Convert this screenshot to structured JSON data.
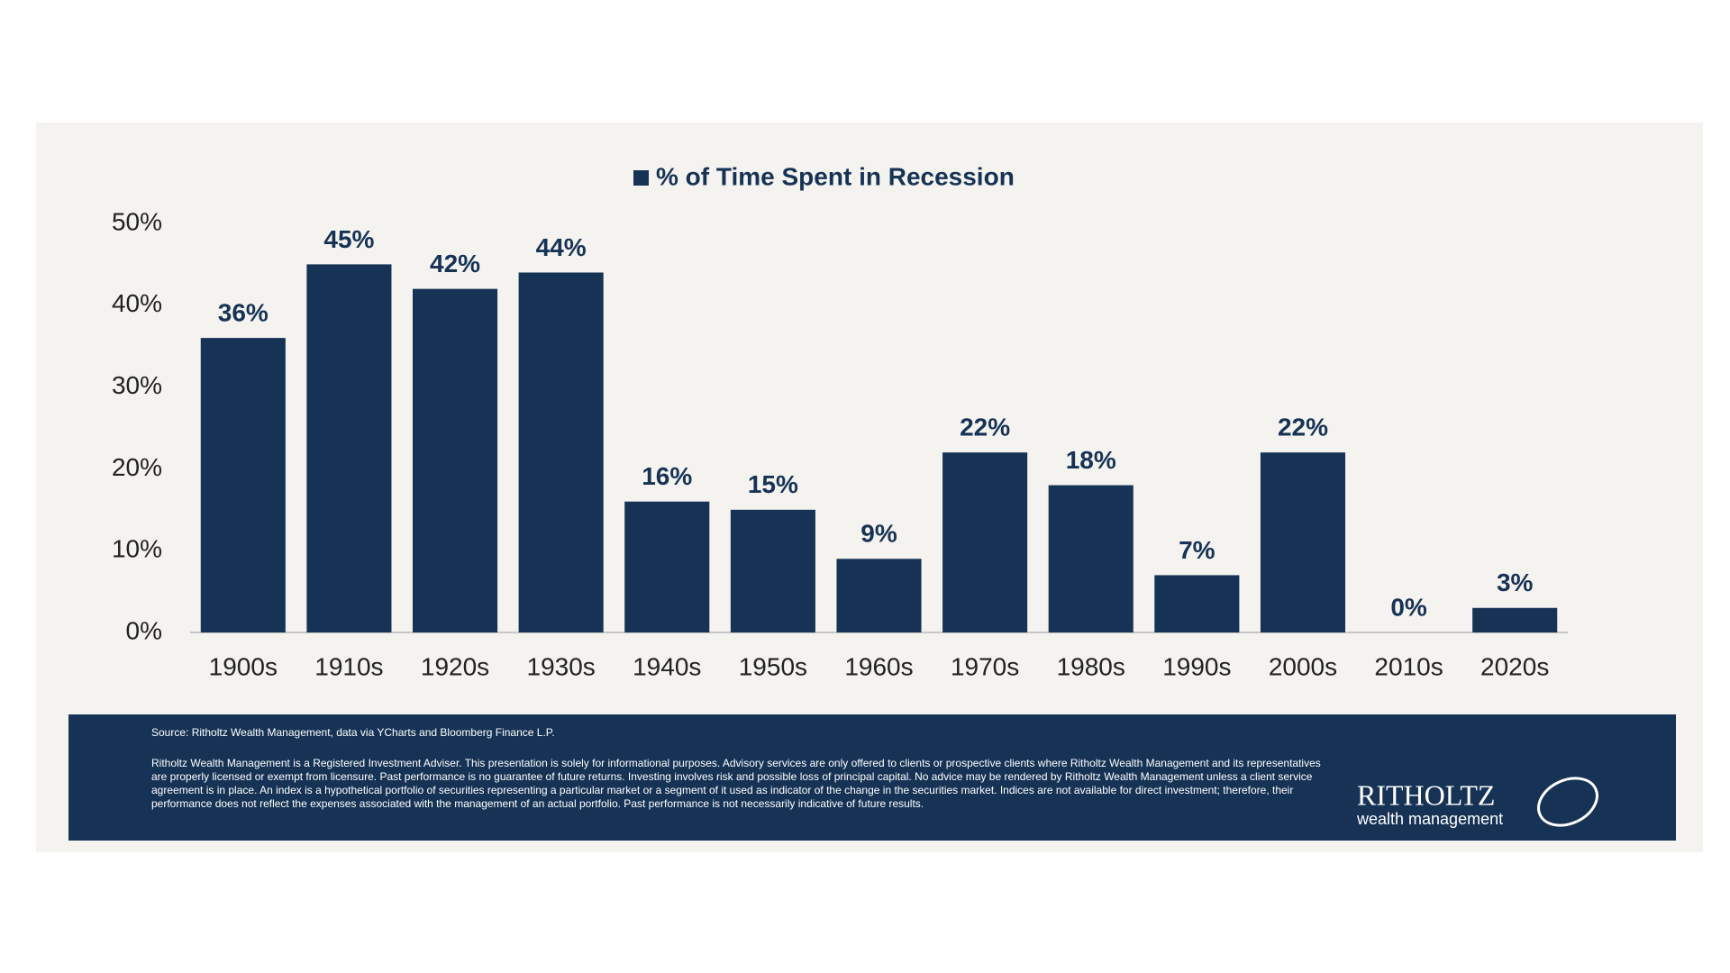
{
  "chart_data": {
    "type": "bar",
    "legend_label": "% of Time Spent in Recession",
    "categories": [
      "1900s",
      "1910s",
      "1920s",
      "1930s",
      "1940s",
      "1950s",
      "1960s",
      "1970s",
      "1980s",
      "1990s",
      "2000s",
      "2010s",
      "2020s"
    ],
    "series": [
      {
        "name": "% of Time Spent in Recession",
        "color": "#163356",
        "values": [
          36,
          45,
          42,
          44,
          16,
          15,
          9,
          22,
          18,
          7,
          22,
          0,
          3
        ],
        "value_labels": [
          "36%",
          "45%",
          "42%",
          "44%",
          "16%",
          "15%",
          "9%",
          "22%",
          "18%",
          "7%",
          "22%",
          "0%",
          "3%"
        ]
      }
    ],
    "ylim": [
      0,
      50
    ],
    "yticks": [
      {
        "value": 0,
        "label": "0%"
      },
      {
        "value": 10,
        "label": "10%"
      },
      {
        "value": 20,
        "label": "20%"
      },
      {
        "value": 30,
        "label": "30%"
      },
      {
        "value": 40,
        "label": "40%"
      },
      {
        "value": 50,
        "label": "50%"
      }
    ],
    "grid": false,
    "source": "Source: Ritholtz Wealth Management, data via YCharts and Bloomberg Finance L.P.",
    "disclaimer": "Ritholtz Wealth Management is a Registered Investment Adviser. This presentation is solely for informational purposes. Advisory services are only offered to clients or prospective clients where Ritholtz Wealth Management and its representatives are properly licensed or exempt from licensure. Past performance is no guarantee of future returns. Investing involves risk and possible loss of principal capital. No advice may be rendered by Ritholtz Wealth Management unless a client service agreement is in place. An index is a hypothetical portfolio of securities representing a particular market or a segment of it used as indicator of the change in the securities market. Indices are not available for direct investment; therefore, their performance does not reflect the expenses associated with the management of an actual portfolio. Past performance is not necessarily indicative of future results.",
    "logo_name": "RITHOLTZ",
    "logo_tagline": "wealth management"
  }
}
